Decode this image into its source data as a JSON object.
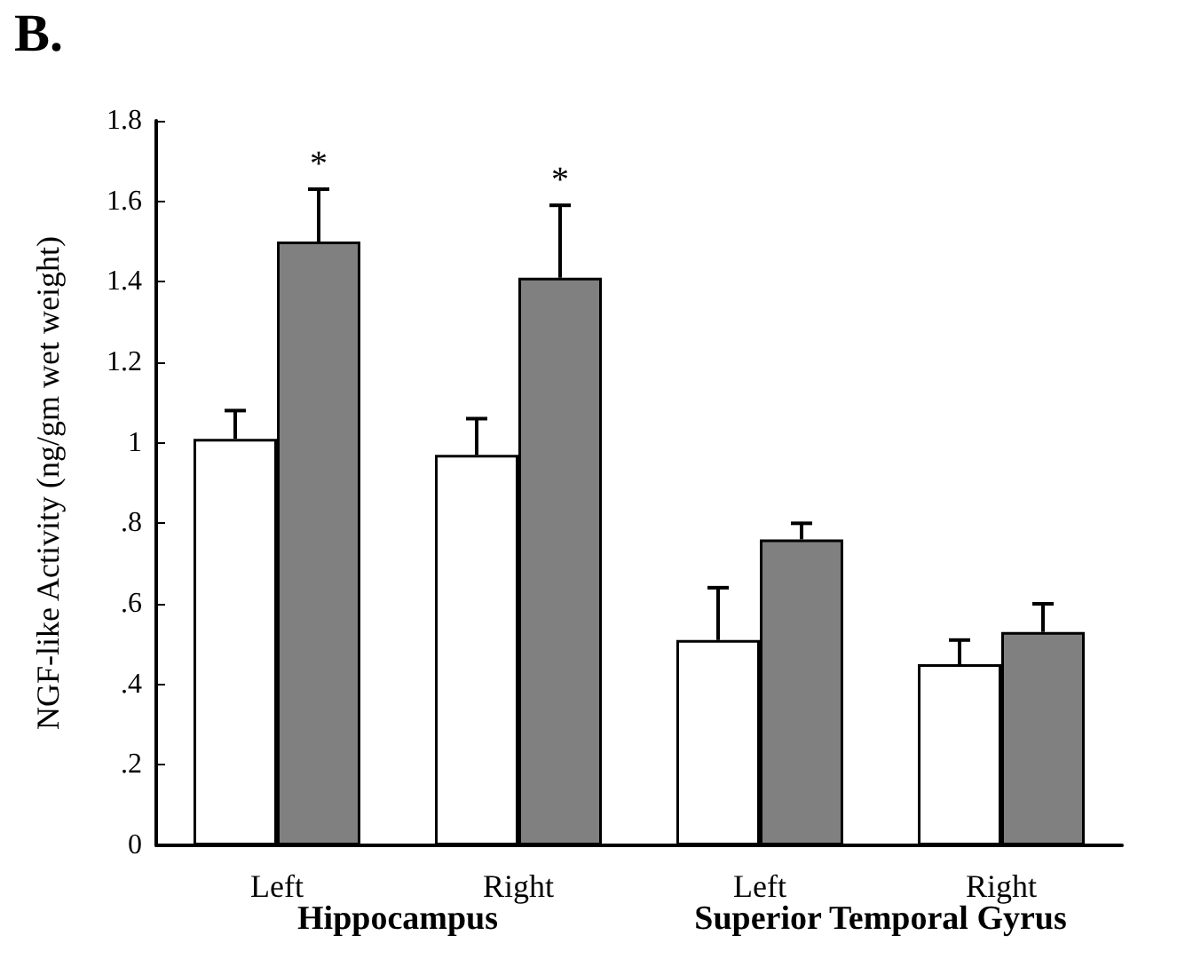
{
  "chart_data": {
    "type": "bar",
    "title": "B.",
    "ylabel": "NGF-like Activity (ng/gm wet weight)",
    "categories": [
      "Left",
      "Right",
      "Left",
      "Right"
    ],
    "series": [
      {
        "color": "#ffffff",
        "values": [
          1.01,
          0.97,
          0.51,
          0.45
        ],
        "errors": [
          0.07,
          0.09,
          0.13,
          0.06
        ]
      },
      {
        "color": "#808080",
        "values": [
          1.5,
          1.41,
          0.76,
          0.53
        ],
        "errors": [
          0.13,
          0.18,
          0.04,
          0.07
        ],
        "value_labels": [
          "*",
          "*",
          null,
          null
        ]
      }
    ],
    "ylim": [
      0,
      1.8
    ],
    "yticks": [
      0,
      {
        "value": 0.2,
        "label": ".2"
      },
      {
        "value": 0.4,
        "label": ".4"
      },
      {
        "value": 0.6,
        "label": ".6"
      },
      {
        "value": 0.8,
        "label": ".8"
      },
      1,
      1.2,
      1.4,
      1.6,
      1.8
    ],
    "annotations": [
      "Hippocampus",
      "Superior Temporal Gyrus"
    ]
  }
}
